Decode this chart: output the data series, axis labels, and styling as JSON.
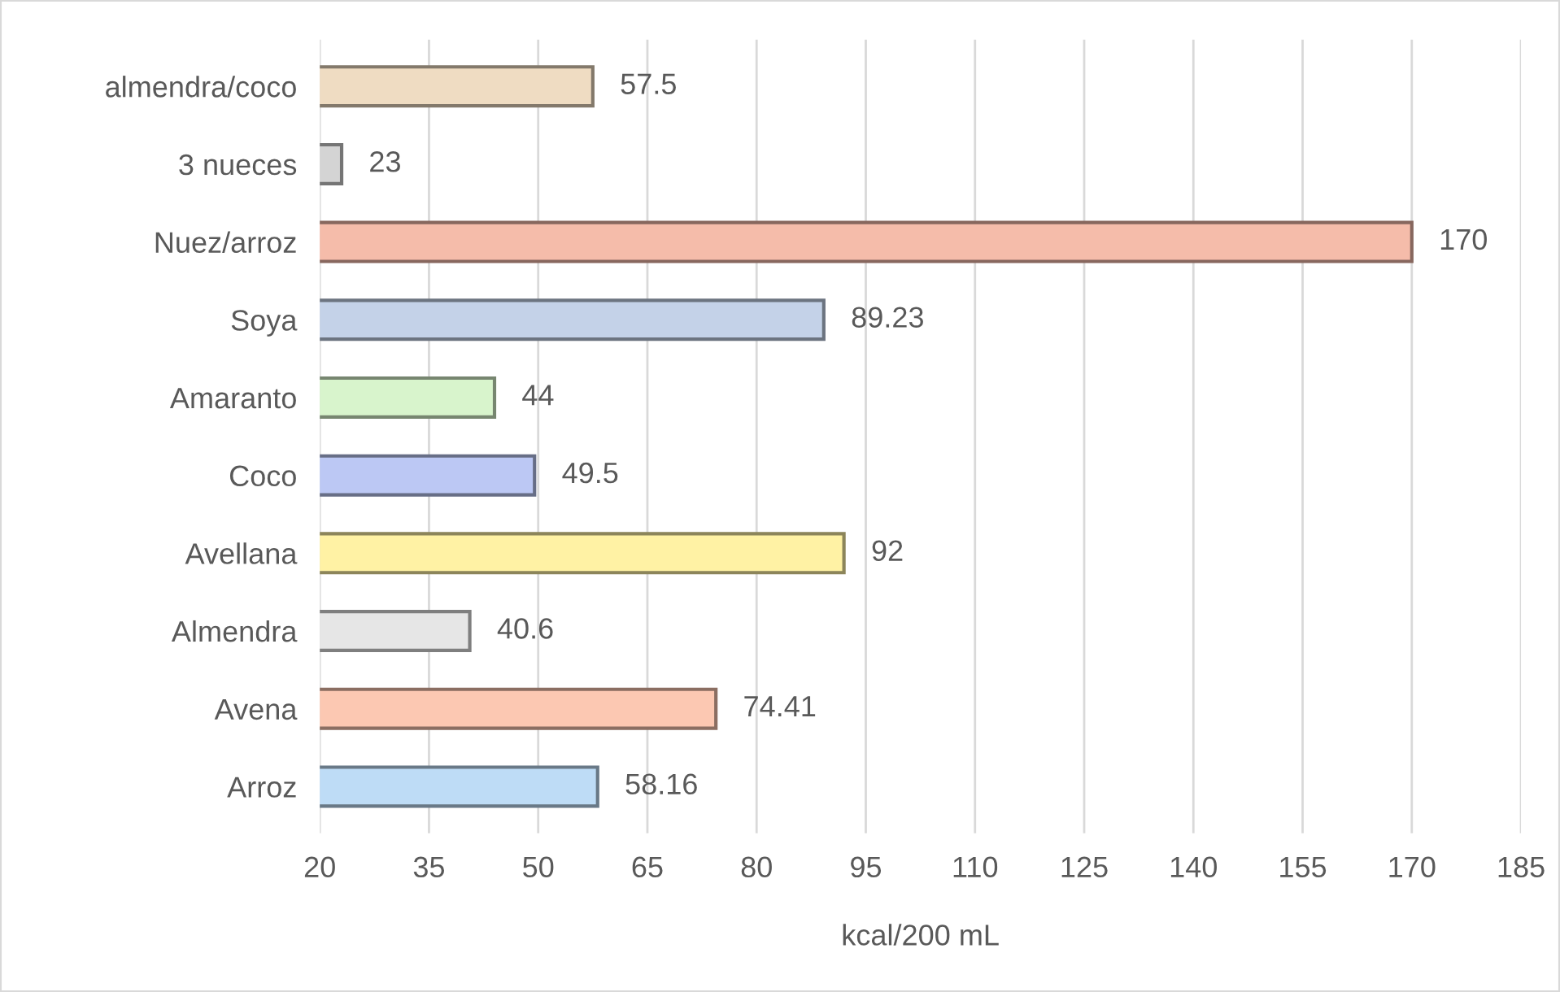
{
  "chart_data": {
    "type": "bar",
    "orientation": "horizontal",
    "xlabel": "kcal/200 mL",
    "categories": [
      "almendra/coco",
      "3 nueces",
      "Nuez/arroz",
      "Soya",
      "Amaranto",
      "Coco",
      "Avellana",
      "Almendra",
      "Avena",
      "Arroz"
    ],
    "values": [
      57.5,
      23,
      170,
      89.23,
      44,
      49.5,
      92,
      40.6,
      74.41,
      58.16
    ],
    "colors": [
      "#efdcc2",
      "#d4d4d4",
      "#f5bcaa",
      "#c4d2e8",
      "#d8f4cc",
      "#bcc8f4",
      "#fff2a4",
      "#e6e6e6",
      "#fcc8b2",
      "#bedcf6"
    ],
    "xlim": [
      20,
      185
    ],
    "xticks": [
      20,
      35,
      50,
      65,
      80,
      95,
      110,
      125,
      140,
      155,
      170,
      185
    ],
    "grid": "x",
    "data_labels": true
  }
}
